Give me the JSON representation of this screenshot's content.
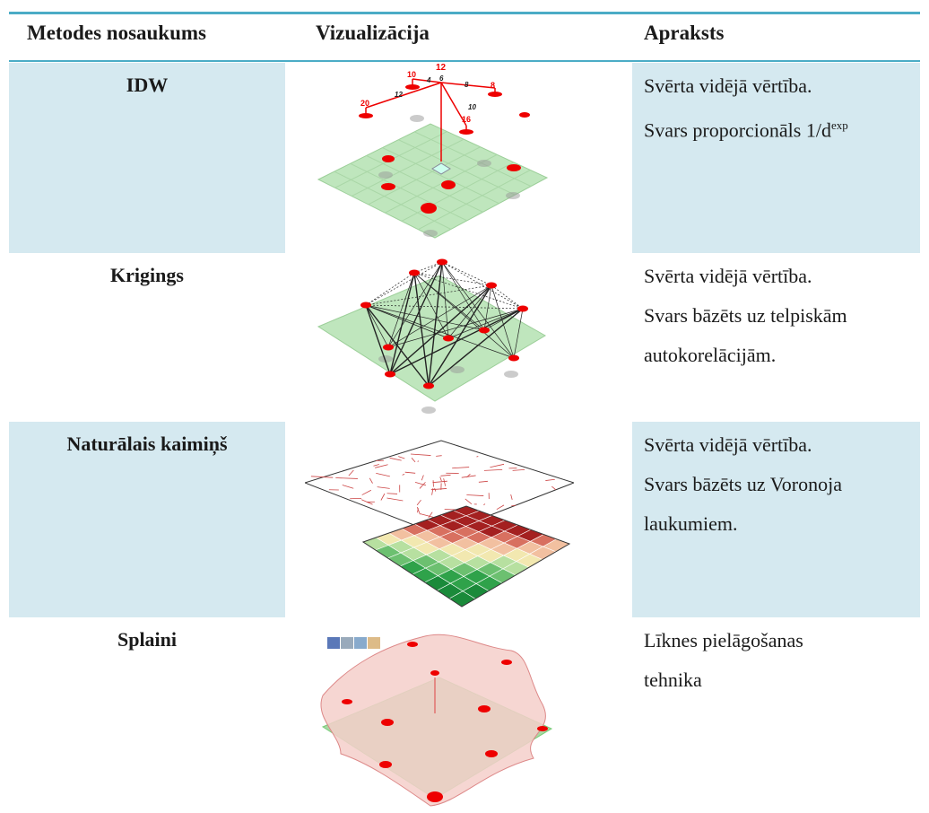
{
  "table": {
    "header": [
      "Metodes nosaukums",
      "Vizualizācija",
      "Apraksts"
    ],
    "rows": [
      {
        "name": "IDW",
        "description": [
          "Svērta vidējā vērtība.",
          "Svars proporcionāls 1/d"
        ],
        "superscript": "exp",
        "image_labels": [
          "12",
          "10",
          "4",
          "6",
          "8",
          "8",
          "12",
          "20",
          "10",
          "16"
        ]
      },
      {
        "name": "Krigings",
        "description": [
          "Svērta vidējā vērtība.",
          "Svars bāzēts uz telpiskām",
          "autokorelācijām."
        ]
      },
      {
        "name": "Naturālais kaimiņš",
        "description": [
          "Svērta vidējā vērtība.",
          "Svars bāzēts uz Voronoja",
          "laukumiem."
        ]
      },
      {
        "name": "Splaini",
        "description": [
          "Līknes pielāgošanas",
          "tehnika"
        ]
      }
    ]
  }
}
